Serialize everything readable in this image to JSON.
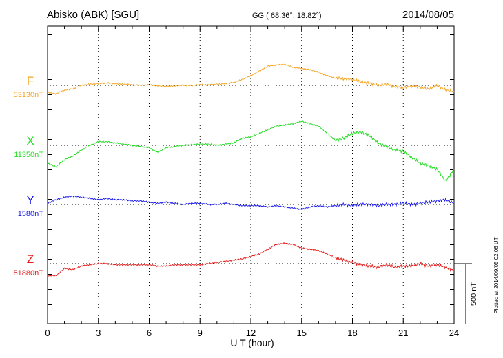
{
  "header": {
    "station": "Abisko (ABK)  [SGU]",
    "coords": "GG ( 68.36°,  18.82°)",
    "date": "2014/08/05"
  },
  "footer": {
    "plotted_at": "Plotted at 2014/09/05 02:06 UT"
  },
  "chart_data": {
    "type": "line",
    "xlabel": "U T (hour)",
    "xlim": [
      0,
      24
    ],
    "x_ticks": [
      "0",
      "3",
      "6",
      "9",
      "12",
      "15",
      "18",
      "21",
      "24"
    ],
    "scale_bar": "500 nT",
    "grid": true,
    "series": [
      {
        "name": "F",
        "baseline": "53130nT",
        "color": "#f5a623",
        "x": [
          0,
          0.5,
          1,
          1.5,
          2,
          2.5,
          3,
          3.5,
          4,
          4.5,
          5,
          5.5,
          6,
          6.5,
          7,
          7.5,
          8,
          8.5,
          9,
          9.5,
          10,
          10.5,
          11,
          11.5,
          12,
          12.5,
          13,
          13.5,
          14,
          14.5,
          15,
          15.5,
          16,
          16.5,
          17,
          17.5,
          18,
          18.5,
          19,
          19.5,
          20,
          20.5,
          21,
          21.5,
          22,
          22.5,
          23,
          23.5,
          24
        ],
        "values": [
          -60,
          -70,
          -40,
          -30,
          0,
          10,
          15,
          20,
          15,
          10,
          5,
          0,
          5,
          -5,
          -10,
          -5,
          0,
          0,
          5,
          5,
          10,
          15,
          25,
          50,
          80,
          120,
          160,
          170,
          175,
          150,
          140,
          130,
          110,
          80,
          60,
          55,
          50,
          30,
          20,
          0,
          10,
          -10,
          -20,
          -5,
          -15,
          -30,
          0,
          -40,
          -50
        ]
      },
      {
        "name": "X",
        "baseline": "11350nT",
        "color": "#22dd22",
        "x": [
          0,
          0.5,
          1,
          1.5,
          2,
          2.5,
          3,
          3.5,
          4,
          4.5,
          5,
          5.5,
          6,
          6.5,
          7,
          7.5,
          8,
          8.5,
          9,
          9.5,
          10,
          10.5,
          11,
          11.5,
          12,
          12.5,
          13,
          13.5,
          14,
          14.5,
          15,
          15.5,
          16,
          16.5,
          17,
          17.5,
          18,
          18.5,
          19,
          19.5,
          20,
          20.5,
          21,
          21.5,
          22,
          22.5,
          23,
          23.5,
          24
        ],
        "values": [
          -150,
          -180,
          -120,
          -90,
          -40,
          0,
          30,
          30,
          20,
          10,
          0,
          -10,
          -20,
          -60,
          -20,
          -10,
          0,
          5,
          10,
          10,
          0,
          10,
          20,
          60,
          70,
          100,
          130,
          160,
          170,
          180,
          200,
          180,
          160,
          100,
          40,
          60,
          100,
          110,
          80,
          20,
          -10,
          -40,
          -50,
          -100,
          -150,
          -170,
          -200,
          -300,
          -200
        ]
      },
      {
        "name": "Y",
        "baseline": "1580nT",
        "color": "#1a1aee",
        "x": [
          0,
          0.5,
          1,
          1.5,
          2,
          2.5,
          3,
          3.5,
          4,
          4.5,
          5,
          5.5,
          6,
          6.5,
          7,
          7.5,
          8,
          8.5,
          9,
          9.5,
          10,
          10.5,
          11,
          11.5,
          12,
          12.5,
          13,
          13.5,
          14,
          14.5,
          15,
          15.5,
          16,
          16.5,
          17,
          17.5,
          18,
          18.5,
          19,
          19.5,
          20,
          20.5,
          21,
          21.5,
          22,
          22.5,
          23,
          23.5,
          24
        ],
        "values": [
          10,
          40,
          60,
          70,
          60,
          50,
          40,
          50,
          40,
          40,
          30,
          30,
          20,
          10,
          20,
          10,
          0,
          10,
          10,
          0,
          0,
          10,
          0,
          -10,
          -10,
          -10,
          -20,
          -10,
          -20,
          -30,
          -40,
          -20,
          -10,
          -20,
          -10,
          0,
          -10,
          0,
          0,
          -10,
          0,
          0,
          10,
          0,
          10,
          20,
          30,
          40,
          10
        ]
      },
      {
        "name": "Z",
        "baseline": "51880nT",
        "color": "#e51b1b",
        "x": [
          0,
          0.5,
          1,
          1.5,
          2,
          2.5,
          3,
          3.5,
          4,
          4.5,
          5,
          5.5,
          6,
          6.5,
          7,
          7.5,
          8,
          8.5,
          9,
          9.5,
          10,
          10.5,
          11,
          11.5,
          12,
          12.5,
          13,
          13.5,
          14,
          14.5,
          15,
          15.5,
          16,
          16.5,
          17,
          17.5,
          18,
          18.5,
          19,
          19.5,
          20,
          20.5,
          21,
          21.5,
          22,
          22.5,
          23,
          23.5,
          24
        ],
        "values": [
          -100,
          -100,
          -40,
          -50,
          -20,
          -10,
          0,
          0,
          -10,
          -10,
          -10,
          -10,
          -10,
          -20,
          -20,
          -10,
          -10,
          -10,
          -10,
          0,
          10,
          20,
          30,
          40,
          60,
          80,
          120,
          160,
          170,
          160,
          130,
          120,
          110,
          80,
          50,
          30,
          10,
          -10,
          -20,
          -30,
          -10,
          -30,
          -20,
          -20,
          0,
          -20,
          -10,
          -30,
          -60
        ]
      }
    ]
  }
}
